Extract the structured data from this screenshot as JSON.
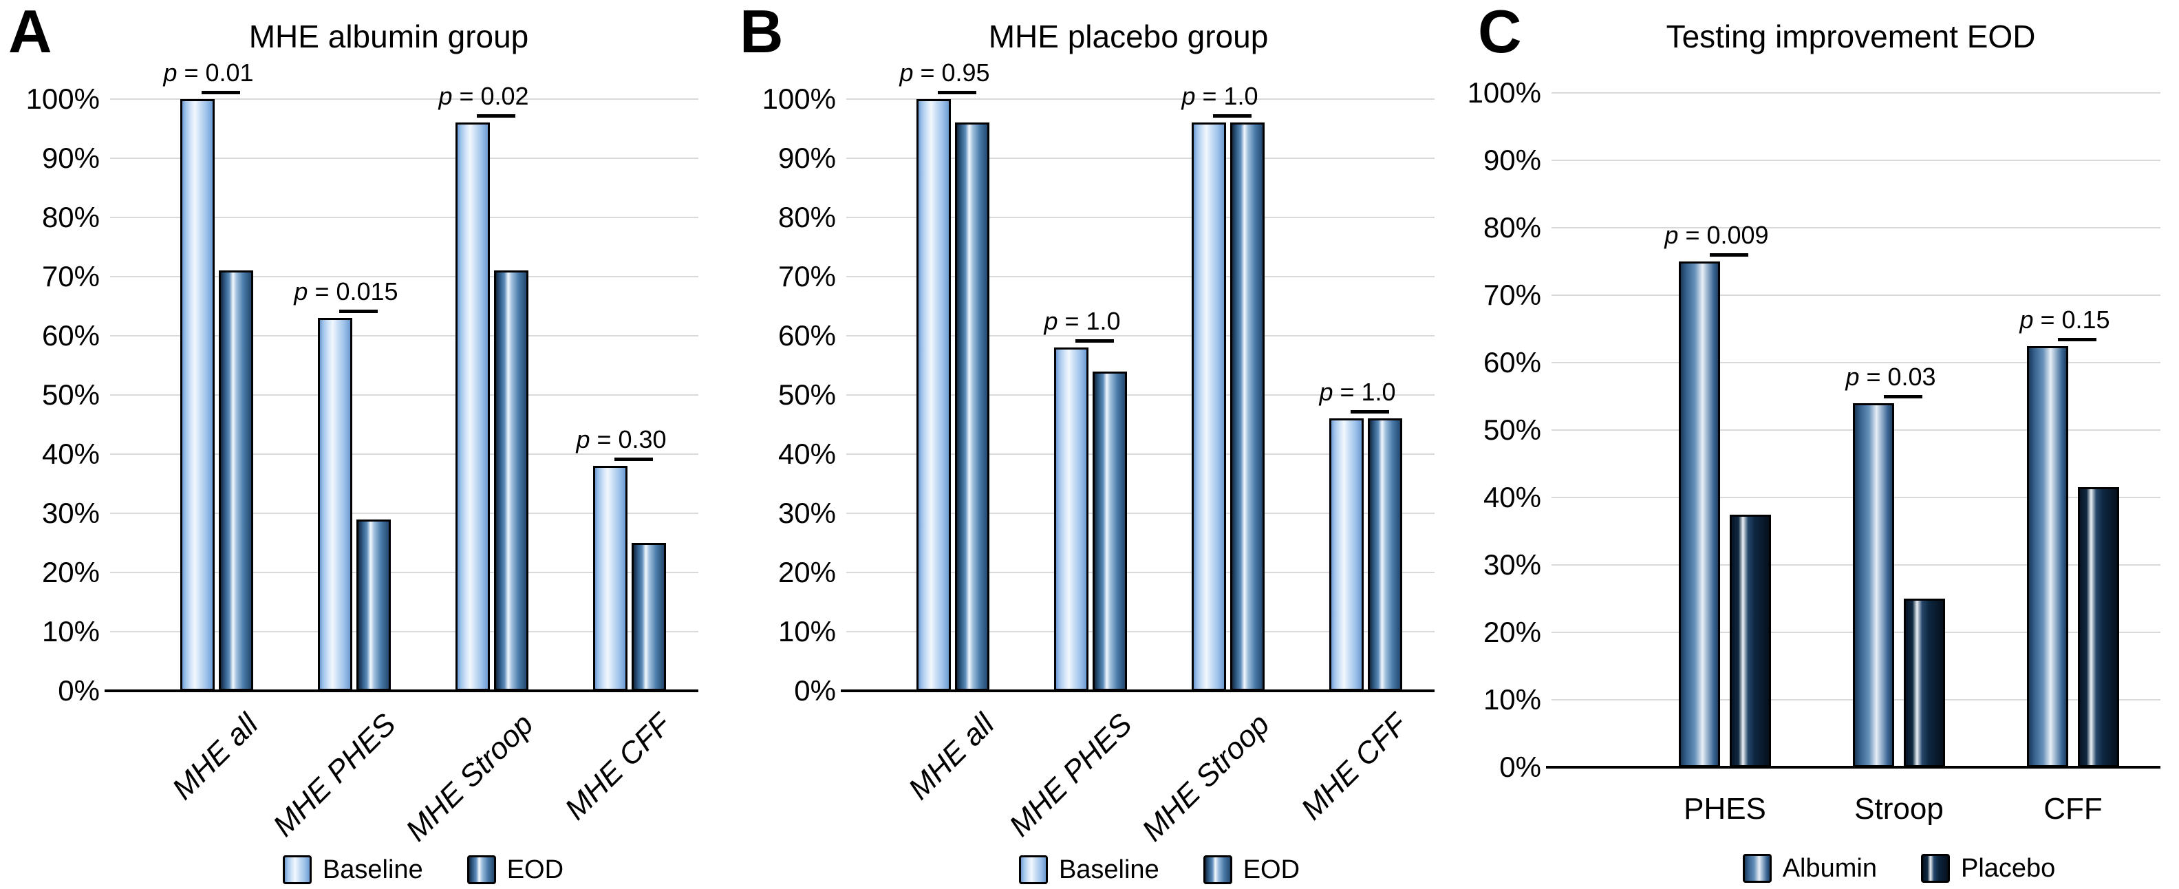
{
  "figure": {
    "background": "#ffffff",
    "panel_letters": [
      "A",
      "B",
      "C"
    ]
  },
  "colors": {
    "baseline_series": "#a9c9ef",
    "eod_series": "#2f5d8e",
    "albumin_series": "#3f6f9f",
    "placebo_series": "#12283e",
    "gridline": "#d9d9d9",
    "axis": "#000000",
    "text": "#000000"
  },
  "chart_data": [
    {
      "type": "bar",
      "panel_letter": "A",
      "title": "MHE albumin group",
      "categories": [
        "MHE all",
        "MHE PHES",
        "MHE Stroop",
        "MHE CFF"
      ],
      "series": [
        {
          "name": "Baseline",
          "key": "baseline",
          "values": [
            100,
            63,
            96,
            38
          ]
        },
        {
          "name": "EOD",
          "key": "eod",
          "values": [
            71,
            29,
            71,
            25
          ]
        }
      ],
      "p_values": [
        "p = 0.01",
        "p = 0.015",
        "p = 0.02",
        "p = 0.30"
      ],
      "ylim": [
        0,
        100
      ],
      "y_tick_labels": [
        "100%",
        "90%",
        "80%",
        "70%",
        "60%",
        "50%",
        "40%",
        "30%",
        "20%",
        "10%",
        "0%"
      ],
      "grid": true,
      "legend_position": "bottom",
      "x_labels_rotated": true
    },
    {
      "type": "bar",
      "panel_letter": "B",
      "title": "MHE placebo group",
      "categories": [
        "MHE all",
        "MHE PHES",
        "MHE Stroop",
        "MHE CFF"
      ],
      "series": [
        {
          "name": "Baseline",
          "key": "baseline",
          "values": [
            100,
            58,
            96,
            46
          ]
        },
        {
          "name": "EOD",
          "key": "eod",
          "values": [
            96,
            54,
            96,
            46
          ]
        }
      ],
      "p_values": [
        "p = 0.95",
        "p = 1.0",
        "p = 1.0",
        "p = 1.0"
      ],
      "ylim": [
        0,
        100
      ],
      "y_tick_labels": [
        "100%",
        "90%",
        "80%",
        "70%",
        "60%",
        "50%",
        "40%",
        "30%",
        "20%",
        "10%",
        "0%"
      ],
      "grid": true,
      "legend_position": "bottom",
      "x_labels_rotated": true
    },
    {
      "type": "bar",
      "panel_letter": "C",
      "title": "Testing improvement EOD",
      "categories": [
        "PHES",
        "Stroop",
        "CFF"
      ],
      "series": [
        {
          "name": "Albumin",
          "key": "albumin",
          "values": [
            75,
            54,
            62.5
          ]
        },
        {
          "name": "Placebo",
          "key": "placebo",
          "values": [
            37.5,
            25,
            41.5
          ]
        }
      ],
      "p_values": [
        "p = 0.009",
        "p = 0.03",
        "p = 0.15"
      ],
      "ylim": [
        0,
        100
      ],
      "y_tick_labels": [
        "100%",
        "90%",
        "80%",
        "70%",
        "60%",
        "50%",
        "40%",
        "30%",
        "20%",
        "10%",
        "0%"
      ],
      "grid": true,
      "legend_position": "bottom",
      "x_labels_rotated": false
    }
  ]
}
